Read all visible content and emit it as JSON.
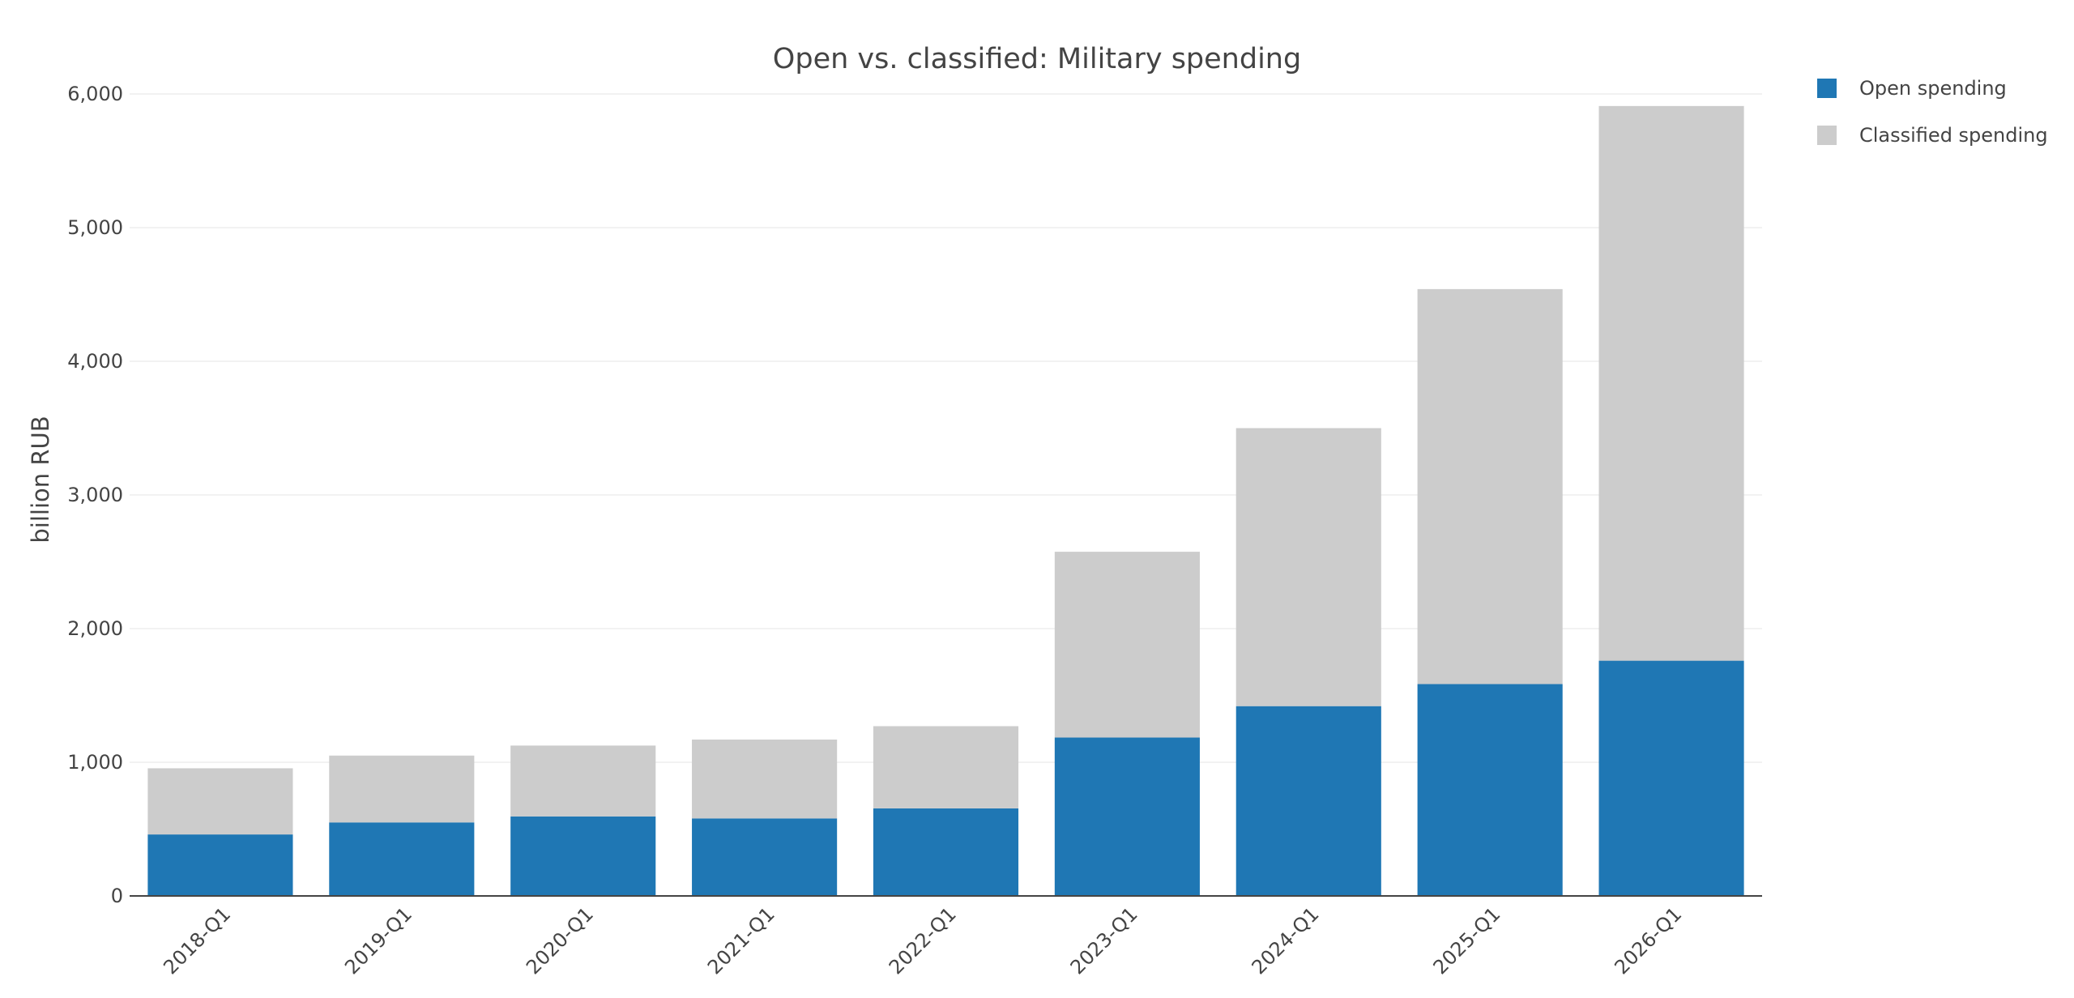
{
  "chart_data": {
    "type": "bar",
    "stacked": true,
    "title": "Open vs. classified: Military spending",
    "xlabel": "",
    "ylabel": "billion RUB",
    "categories": [
      "2018-Q1",
      "2019-Q1",
      "2020-Q1",
      "2021-Q1",
      "2022-Q1",
      "2023-Q1",
      "2024-Q1",
      "2025-Q1",
      "2026-Q1"
    ],
    "series": [
      {
        "name": "Open spending",
        "color": "#1f77b4",
        "values": [
          460,
          550,
          595,
          580,
          655,
          1185,
          1420,
          1585,
          1760
        ]
      },
      {
        "name": "Classified spending",
        "color": "#cccccc",
        "values": [
          495,
          500,
          530,
          590,
          615,
          1390,
          2080,
          2955,
          4150
        ]
      }
    ],
    "ylim": [
      0,
      6000
    ],
    "yticks": [
      0,
      1000,
      2000,
      3000,
      4000,
      5000,
      6000
    ],
    "ytick_labels": [
      "0",
      "1,000",
      "2,000",
      "3,000",
      "4,000",
      "5,000",
      "6,000"
    ],
    "grid": true,
    "legend_position": "top-right",
    "colors": {
      "grid": "#eeeeee",
      "axis": "#444444",
      "text": "#444444"
    }
  }
}
